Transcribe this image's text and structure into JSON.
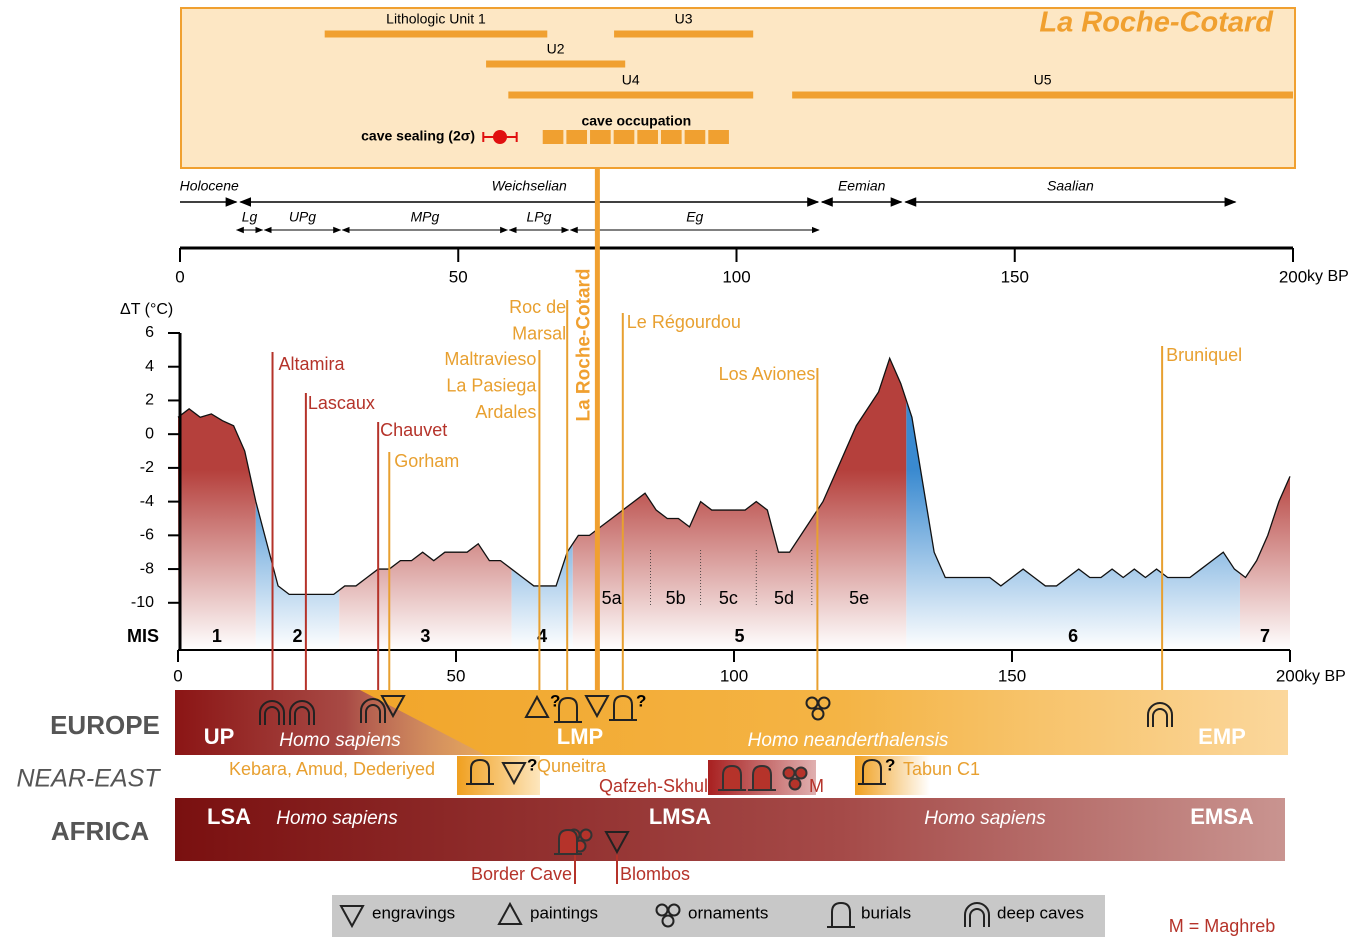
{
  "timeline": {
    "title": "La Roche-Cotard",
    "xlim": [
      0,
      200
    ],
    "xticks": [
      0,
      50,
      100,
      150,
      200
    ],
    "xlabel": "ky BP",
    "color": "#f0a030",
    "units": [
      {
        "name": "Lithologic Unit 1",
        "start": 26,
        "end": 66
      },
      {
        "name": "U3",
        "start": 78,
        "end": 103
      },
      {
        "name": "U2",
        "start": 55,
        "end": 80
      },
      {
        "name": "U4",
        "start": 59,
        "end": 103
      },
      {
        "name": "U5",
        "start": 110,
        "end": 200
      }
    ],
    "sealing": {
      "label": "cave sealing (2σ)",
      "value": 57.5,
      "error": 3,
      "color": "#e01010"
    },
    "occupation": {
      "label": "cave occupation",
      "start": 65,
      "end": 99
    },
    "periods": [
      {
        "name": "Holocene",
        "start": 0,
        "end": 10.5
      },
      {
        "name": "Weichselian",
        "start": 10.5,
        "end": 115
      },
      {
        "name": "Eemian",
        "start": 115,
        "end": 130
      },
      {
        "name": "Saalian",
        "start": 130,
        "end": 190
      }
    ],
    "subperiods": [
      {
        "name": "Lg",
        "start": 10,
        "end": 15
      },
      {
        "name": "UPg",
        "start": 15,
        "end": 29
      },
      {
        "name": "MPg",
        "start": 29,
        "end": 59
      },
      {
        "name": "LPg",
        "start": 59,
        "end": 70
      },
      {
        "name": "Eg",
        "start": 70,
        "end": 115
      }
    ]
  },
  "chart_data": {
    "type": "line",
    "ylabel": "ΔT (°C)",
    "xlabel": "ky BP",
    "xlim": [
      0,
      200
    ],
    "xticks": [
      0,
      50,
      100,
      150,
      200
    ],
    "ylim": [
      -12.8,
      6
    ],
    "yticks": [
      6,
      4,
      2,
      0,
      -2,
      -4,
      -6,
      -8,
      -10
    ],
    "color": "#111111",
    "x": [
      0,
      2,
      4,
      6,
      8,
      10,
      12,
      14,
      16,
      18,
      20,
      22,
      24,
      26,
      28,
      30,
      32,
      34,
      36,
      38,
      40,
      42,
      44,
      46,
      48,
      50,
      52,
      54,
      56,
      58,
      60,
      62,
      64,
      66,
      68,
      70,
      72,
      74,
      76,
      78,
      80,
      82,
      84,
      86,
      88,
      90,
      92,
      94,
      96,
      98,
      100,
      102,
      104,
      106,
      108,
      110,
      112,
      114,
      116,
      118,
      120,
      122,
      124,
      126,
      128,
      130,
      132,
      134,
      136,
      138,
      140,
      142,
      144,
      146,
      148,
      150,
      152,
      154,
      156,
      158,
      160,
      162,
      164,
      166,
      168,
      170,
      172,
      174,
      176,
      178,
      180,
      182,
      184,
      186,
      188,
      190,
      192,
      194,
      196,
      198,
      200
    ],
    "values": [
      1,
      1.5,
      1,
      1.2,
      0.8,
      0.5,
      -1,
      -4,
      -6.5,
      -9,
      -9.5,
      -9.5,
      -9.5,
      -9.5,
      -9.5,
      -9,
      -9,
      -8.5,
      -8,
      -8,
      -7.5,
      -7.5,
      -7,
      -7.5,
      -7,
      -7,
      -7,
      -6.5,
      -7.5,
      -7.5,
      -8,
      -8.5,
      -9,
      -9,
      -9,
      -7,
      -6,
      -6,
      -5.5,
      -5,
      -4.5,
      -4,
      -3.5,
      -4.5,
      -5,
      -5,
      -5.5,
      -4,
      -4.5,
      -4.5,
      -4.5,
      -4.5,
      -4,
      -4.5,
      -7,
      -7,
      -6,
      -5,
      -4,
      -2.5,
      -1,
      0.5,
      1.5,
      2.5,
      4.5,
      3,
      1,
      -3,
      -7,
      -8.5,
      -8.5,
      -8.5,
      -8.5,
      -8.5,
      -9,
      -8.5,
      -8,
      -8.5,
      -9,
      -9,
      -8.5,
      -8,
      -8.5,
      -8.5,
      -8,
      -8.5,
      -8,
      -8.5,
      -8,
      -8.5,
      -8.5,
      -8.5,
      -8,
      -7.5,
      -7,
      -8,
      -8.5,
      -7.5,
      -6,
      -4,
      -2.5
    ],
    "mis_label": "MIS",
    "mis": [
      {
        "name": "1",
        "start": 0,
        "end": 14,
        "color": "#b5403c"
      },
      {
        "name": "2",
        "start": 14,
        "end": 29,
        "color": "#3a8ad0"
      },
      {
        "name": "3",
        "start": 29,
        "end": 60,
        "color": "#b5403c"
      },
      {
        "name": "4",
        "start": 60,
        "end": 71,
        "color": "#3a8ad0"
      },
      {
        "name": "5",
        "start": 71,
        "end": 131,
        "color": "#b5403c"
      },
      {
        "name": "6",
        "start": 131,
        "end": 191,
        "color": "#3a8ad0"
      },
      {
        "name": "7",
        "start": 191,
        "end": 200,
        "color": "#b5403c"
      }
    ],
    "substages": [
      {
        "name": "5a",
        "start": 71,
        "end": 85
      },
      {
        "name": "5b",
        "start": 85,
        "end": 94
      },
      {
        "name": "5c",
        "start": 94,
        "end": 104
      },
      {
        "name": "5d",
        "start": 104,
        "end": 114
      },
      {
        "name": "5e",
        "start": 114,
        "end": 131
      }
    ]
  },
  "focus_site": {
    "name": "La Roche-Cotard",
    "age": 75,
    "color": "#f0a030"
  },
  "sites": [
    {
      "lines": [
        "Altamira"
      ],
      "age": 17,
      "color": "#b5332a"
    },
    {
      "lines": [
        "Lascaux"
      ],
      "age": 23,
      "color": "#b5332a"
    },
    {
      "lines": [
        "Chauvet"
      ],
      "age": 36,
      "color": "#b5332a"
    },
    {
      "lines": [
        "Gorham"
      ],
      "age": 38,
      "color": "#e8a030"
    },
    {
      "lines": [
        "Maltravieso",
        "La Pasiega",
        "Ardales"
      ],
      "age": 65,
      "color": "#e8a030"
    },
    {
      "lines": [
        "Roc de",
        "Marsal"
      ],
      "age": 70,
      "color": "#e8a030"
    },
    {
      "lines": [
        "Le Régourdou"
      ],
      "age": 80,
      "color": "#e8a030"
    },
    {
      "lines": [
        "Los Aviones"
      ],
      "age": 115,
      "color": "#e8a030"
    },
    {
      "lines": [
        "Bruniquel"
      ],
      "age": 177,
      "color": "#e8a030"
    }
  ],
  "regions": {
    "europe": {
      "label": "EUROPE",
      "texts": [
        "UP",
        "Homo sapiens",
        "LMP",
        "Homo neanderthalensis",
        "EMP"
      ]
    },
    "near_east": {
      "label": "NEAR-EAST",
      "texts": [
        "Kebara, Amud, Dederiyed",
        "Quneitra",
        "Qafzeh-Skhul",
        "M",
        "Tabun C1"
      ]
    },
    "africa": {
      "label": "AFRICA",
      "texts": [
        "LSA",
        "Homo sapiens",
        "LMSA",
        "Homo sapiens",
        "EMSA",
        "Border Cave",
        "Blombos"
      ]
    }
  },
  "uncertain": "?",
  "legend": {
    "items": [
      "engravings",
      "paintings",
      "ornaments",
      "burials",
      "deep caves"
    ],
    "note": "M = Maghreb"
  }
}
